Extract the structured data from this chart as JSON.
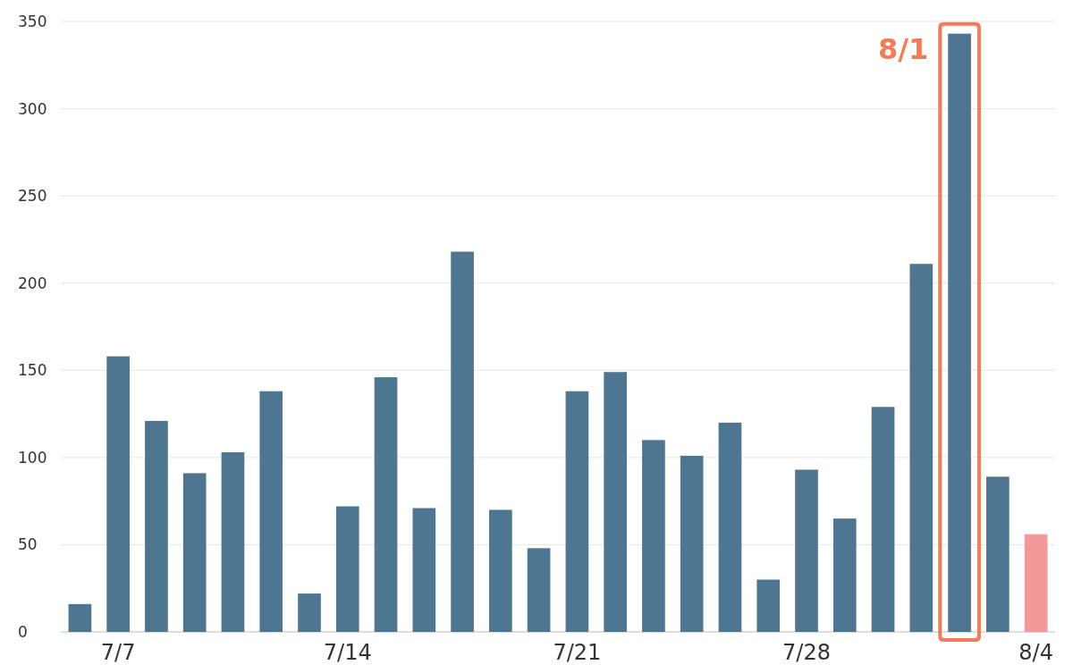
{
  "chart_data": {
    "type": "bar",
    "categories": [
      null,
      "7/7",
      null,
      null,
      null,
      null,
      null,
      "7/14",
      null,
      null,
      null,
      null,
      null,
      "7/21",
      null,
      null,
      null,
      null,
      null,
      "7/28",
      null,
      null,
      null,
      null,
      null,
      "8/4"
    ],
    "values": [
      16,
      158,
      121,
      91,
      103,
      138,
      22,
      72,
      146,
      71,
      218,
      70,
      48,
      138,
      149,
      110,
      101,
      120,
      30,
      93,
      65,
      129,
      211,
      343,
      89,
      56
    ],
    "colors": [
      "#4e7690",
      "#4e7690",
      "#4e7690",
      "#4e7690",
      "#4e7690",
      "#4e7690",
      "#4e7690",
      "#4e7690",
      "#4e7690",
      "#4e7690",
      "#4e7690",
      "#4e7690",
      "#4e7690",
      "#4e7690",
      "#4e7690",
      "#4e7690",
      "#4e7690",
      "#4e7690",
      "#4e7690",
      "#4e7690",
      "#4e7690",
      "#4e7690",
      "#4e7690",
      "#4e7690",
      "#4e7690",
      "#f4999a"
    ],
    "ylim": [
      0,
      350
    ],
    "yticks": [
      0,
      50,
      100,
      150,
      200,
      250,
      300,
      350
    ],
    "grid": "y",
    "annotations": [
      "8/1"
    ]
  }
}
